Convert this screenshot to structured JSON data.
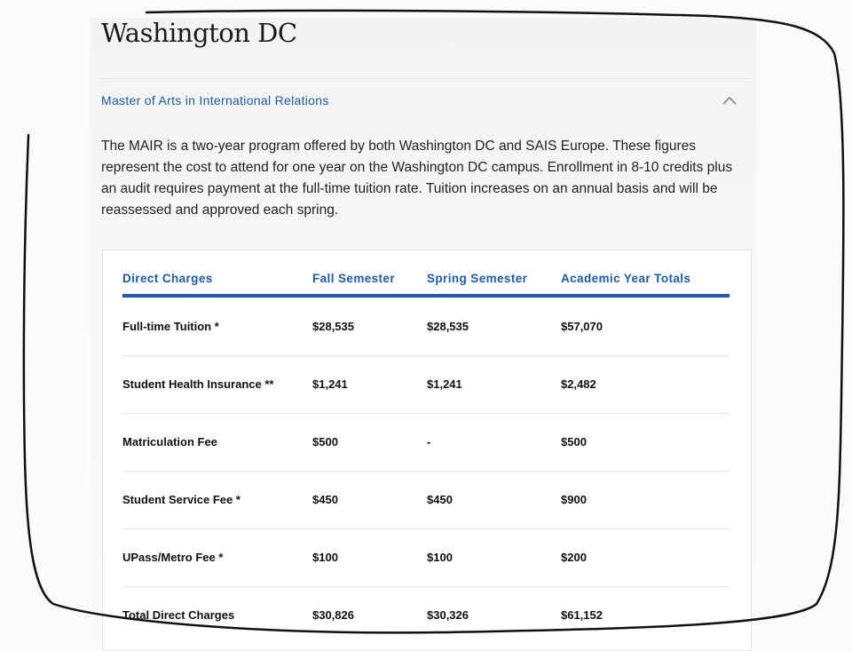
{
  "page": {
    "title": "Washington DC",
    "accordion": {
      "label": "Master of Arts in International Relations",
      "icon": "chevron-up-icon",
      "expanded": true
    },
    "description": "The MAIR is a two-year program offered by both Washington DC and SAIS Europe. These figures represent the cost to attend for one year on the Washington DC campus. Enrollment in 8-10 credits plus an audit requires payment at the full-time tuition rate. Tuition increases on an annual basis and will be reassessed and approved each spring."
  },
  "table": {
    "headers": [
      "Direct Charges",
      "Fall Semester",
      "Spring Semester",
      "Academic Year Totals"
    ],
    "rows": [
      [
        "Full-time Tuition *",
        "$28,535",
        "$28,535",
        "$57,070"
      ],
      [
        "Student Health Insurance **",
        "$1,241",
        "$1,241",
        "$2,482"
      ],
      [
        "Matriculation Fee",
        "$500",
        "-",
        "$500"
      ],
      [
        "Student Service Fee *",
        "$450",
        "$450",
        "$900"
      ],
      [
        "UPass/Metro Fee *",
        "$100",
        "$100",
        "$200"
      ],
      [
        "Total Direct Charges",
        "$30,826",
        "$30,326",
        "$61,152"
      ]
    ]
  },
  "colors": {
    "accent": "#1e5aa6",
    "text": "#111111"
  }
}
